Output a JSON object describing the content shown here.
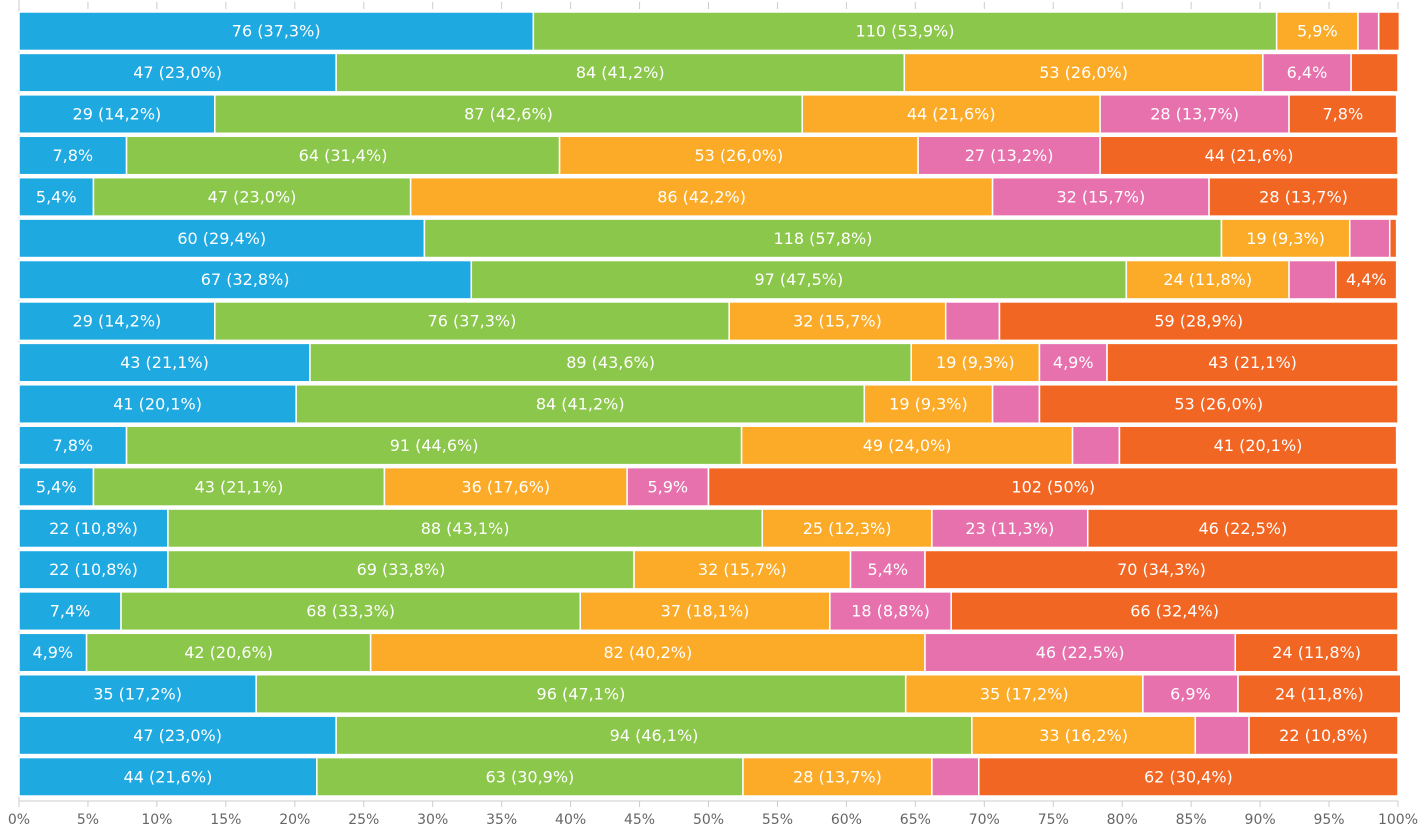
{
  "chart_data": {
    "type": "stacked-bar-horizontal",
    "xlim": [
      0,
      100
    ],
    "xticks": [
      {
        "value": 0,
        "label": "0%"
      },
      {
        "value": 5,
        "label": "5%"
      },
      {
        "value": 10,
        "label": "10%"
      },
      {
        "value": 15,
        "label": "15%"
      },
      {
        "value": 20,
        "label": "20%"
      },
      {
        "value": 25,
        "label": "25%"
      },
      {
        "value": 30,
        "label": "30%"
      },
      {
        "value": 35,
        "label": "35%"
      },
      {
        "value": 40,
        "label": "40%"
      },
      {
        "value": 45,
        "label": "45%"
      },
      {
        "value": 50,
        "label": "50%"
      },
      {
        "value": 55,
        "label": "55%"
      },
      {
        "value": 60,
        "label": "60%"
      },
      {
        "value": 65,
        "label": "65%"
      },
      {
        "value": 70,
        "label": "70%"
      },
      {
        "value": 75,
        "label": "75%"
      },
      {
        "value": 80,
        "label": "80%"
      },
      {
        "value": 85,
        "label": "85%"
      },
      {
        "value": 90,
        "label": "90%"
      },
      {
        "value": 95,
        "label": "95%"
      },
      {
        "value": 100,
        "label": "100%"
      }
    ],
    "series": [
      {
        "color": "#1fa9e1",
        "values": [
          37.3,
          23.0,
          14.2,
          7.8,
          5.4,
          29.4,
          32.8,
          14.2,
          21.1,
          20.1,
          7.8,
          5.4,
          10.8,
          10.8,
          7.4,
          4.9,
          17.2,
          23.0,
          21.6
        ],
        "value_labels": [
          "76 (37,3%)",
          "47 (23,0%)",
          "29 (14,2%)",
          "7,8%",
          "5,4%",
          "60 (29,4%)",
          "67 (32,8%)",
          "29 (14,2%)",
          "43 (21,1%)",
          "41 (20,1%)",
          "7,8%",
          "5,4%",
          "22 (10,8%)",
          "22 (10,8%)",
          "7,4%",
          "4,9%",
          "35 (17,2%)",
          "47 (23,0%)",
          "44 (21,6%)"
        ]
      },
      {
        "color": "#8bc74a",
        "values": [
          53.9,
          41.2,
          42.6,
          31.4,
          23.0,
          57.8,
          47.5,
          37.3,
          43.6,
          41.2,
          44.6,
          21.1,
          43.1,
          33.8,
          33.3,
          20.6,
          47.1,
          46.1,
          30.9
        ],
        "value_labels": [
          "110 (53,9%)",
          "84 (41,2%)",
          "87 (42,6%)",
          "64 (31,4%)",
          "47 (23,0%)",
          "118 (57,8%)",
          "97 (47,5%)",
          "76 (37,3%)",
          "89 (43,6%)",
          "84 (41,2%)",
          "91 (44,6%)",
          "43 (21,1%)",
          "88 (43,1%)",
          "69 (33,8%)",
          "68 (33,3%)",
          "42 (20,6%)",
          "96 (47,1%)",
          "94 (46,1%)",
          "63 (30,9%)"
        ]
      },
      {
        "color": "#fbab28",
        "values": [
          5.9,
          26.0,
          21.6,
          26.0,
          42.2,
          9.3,
          11.8,
          15.7,
          9.3,
          9.3,
          24.0,
          17.6,
          12.3,
          15.7,
          18.1,
          40.2,
          17.2,
          16.2,
          13.7
        ],
        "value_labels": [
          "5,9%",
          "53 (26,0%)",
          "44 (21,6%)",
          "53 (26,0%)",
          "86 (42,2%)",
          "19 (9,3%)",
          "24 (11,8%)",
          "32 (15,7%)",
          "19 (9,3%)",
          "19 (9,3%)",
          "49 (24,0%)",
          "36 (17,6%)",
          "25 (12,3%)",
          "32 (15,7%)",
          "37 (18,1%)",
          "82 (40,2%)",
          "35 (17,2%)",
          "33 (16,2%)",
          "28 (13,7%)"
        ]
      },
      {
        "color": "#e771ad",
        "values": [
          1.5,
          6.4,
          13.7,
          13.2,
          15.7,
          2.9,
          3.4,
          3.9,
          4.9,
          3.4,
          3.4,
          5.9,
          11.3,
          5.4,
          8.8,
          22.5,
          6.9,
          3.9,
          3.4
        ],
        "value_labels": [
          null,
          "6,4%",
          "28 (13,7%)",
          "27 (13,2%)",
          "32 (15,7%)",
          null,
          null,
          null,
          "4,9%",
          null,
          null,
          "5,9%",
          "23 (11,3%)",
          "5,4%",
          "18 (8,8%)",
          "46 (22,5%)",
          "6,9%",
          null,
          null
        ]
      },
      {
        "color": "#f26624",
        "values": [
          1.5,
          3.4,
          7.8,
          21.6,
          13.7,
          0.5,
          4.4,
          28.9,
          21.1,
          26.0,
          20.1,
          50,
          22.5,
          34.3,
          32.4,
          11.8,
          11.8,
          10.8,
          30.4
        ],
        "value_labels": [
          null,
          null,
          "7,8%",
          "44 (21,6%)",
          "28 (13,7%)",
          null,
          "4,4%",
          "59 (28,9%)",
          "43 (21,1%)",
          "53 (26,0%)",
          "41 (20,1%)",
          "102 (50%)",
          "46 (22,5%)",
          "70 (34,3%)",
          "66 (32,4%)",
          "24 (11,8%)",
          "24 (11,8%)",
          "22 (10,8%)",
          "62 (30,4%)"
        ]
      }
    ]
  }
}
